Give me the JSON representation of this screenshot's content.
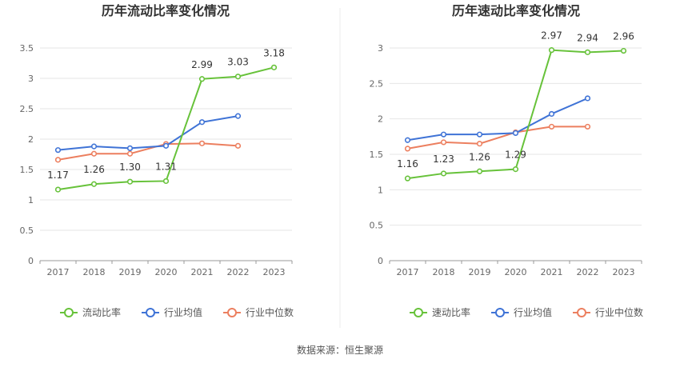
{
  "source": "数据来源：恒生聚源",
  "colors": {
    "company": "#67c23a",
    "industry_avg": "#3f73d6",
    "industry_median": "#ec7f5f"
  },
  "chart_data": [
    {
      "type": "line",
      "title": "历年流动比率变化情况",
      "categories": [
        "2017",
        "2018",
        "2019",
        "2020",
        "2021",
        "2022",
        "2023"
      ],
      "ylim": [
        0,
        3.5
      ],
      "yticks": [
        "0",
        "0.5",
        "1",
        "1.5",
        "2",
        "2.5",
        "3",
        "3.5"
      ],
      "grid": true,
      "legend_position": "bottom",
      "series": [
        {
          "name": "流动比率",
          "values": [
            1.17,
            1.26,
            1.3,
            1.31,
            2.99,
            3.03,
            3.18
          ],
          "labels": [
            "1.17",
            "1.26",
            "1.30",
            "1.31",
            "2.99",
            "3.03",
            "3.18"
          ]
        },
        {
          "name": "行业均值",
          "values": [
            1.82,
            1.88,
            1.85,
            1.89,
            2.28,
            2.38,
            null
          ]
        },
        {
          "name": "行业中位数",
          "values": [
            1.66,
            1.76,
            1.76,
            1.92,
            1.93,
            1.89,
            null
          ]
        }
      ]
    },
    {
      "type": "line",
      "title": "历年速动比率变化情况",
      "categories": [
        "2017",
        "2018",
        "2019",
        "2020",
        "2021",
        "2022",
        "2023"
      ],
      "ylim": [
        0,
        3
      ],
      "yticks": [
        "0",
        "0.5",
        "1",
        "1.5",
        "2",
        "2.5",
        "3"
      ],
      "grid": true,
      "legend_position": "bottom",
      "series": [
        {
          "name": "速动比率",
          "values": [
            1.16,
            1.23,
            1.26,
            1.29,
            2.97,
            2.94,
            2.96
          ],
          "labels": [
            "1.16",
            "1.23",
            "1.26",
            "1.29",
            "2.97",
            "2.94",
            "2.96"
          ]
        },
        {
          "name": "行业均值",
          "values": [
            1.7,
            1.78,
            1.78,
            1.8,
            2.07,
            2.29,
            null
          ]
        },
        {
          "name": "行业中位数",
          "values": [
            1.58,
            1.67,
            1.65,
            1.81,
            1.89,
            1.89,
            null
          ]
        }
      ]
    }
  ]
}
